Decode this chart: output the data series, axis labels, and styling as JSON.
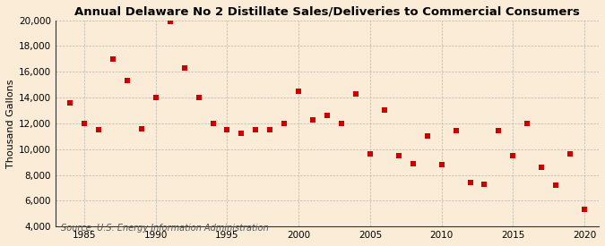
{
  "title": "Annual Delaware No 2 Distillate Sales/Deliveries to Commercial Consumers",
  "ylabel": "Thousand Gallons",
  "source": "Source: U.S. Energy Information Administration",
  "background_color": "#faecd7",
  "plot_background_color": "#faecd7",
  "marker_color": "#cc0000",
  "marker": "s",
  "marker_size": 4,
  "years": [
    1984,
    1985,
    1986,
    1987,
    1988,
    1989,
    1990,
    1991,
    1992,
    1993,
    1994,
    1995,
    1996,
    1997,
    1998,
    1999,
    2000,
    2001,
    2002,
    2003,
    2004,
    2005,
    2006,
    2007,
    2008,
    2009,
    2010,
    2011,
    2012,
    2013,
    2014,
    2015,
    2016,
    2017,
    2018,
    2019,
    2020
  ],
  "values": [
    13600,
    12000,
    11500,
    17000,
    15300,
    11600,
    14000,
    19900,
    16300,
    14000,
    12000,
    11500,
    11200,
    11500,
    11500,
    12000,
    14500,
    12300,
    12600,
    12000,
    14300,
    9600,
    13000,
    9500,
    8900,
    11000,
    8800,
    11400,
    7400,
    7300,
    11400,
    9500,
    12000,
    8600,
    7200,
    9600,
    5300
  ],
  "xlim": [
    1983,
    2021
  ],
  "ylim": [
    4000,
    20000
  ],
  "yticks": [
    4000,
    6000,
    8000,
    10000,
    12000,
    14000,
    16000,
    18000,
    20000
  ],
  "xticks": [
    1985,
    1990,
    1995,
    2000,
    2005,
    2010,
    2015,
    2020
  ],
  "grid_color": "#aaaaaa",
  "title_fontsize": 9.5,
  "axis_fontsize": 8,
  "tick_fontsize": 7.5,
  "source_fontsize": 7
}
